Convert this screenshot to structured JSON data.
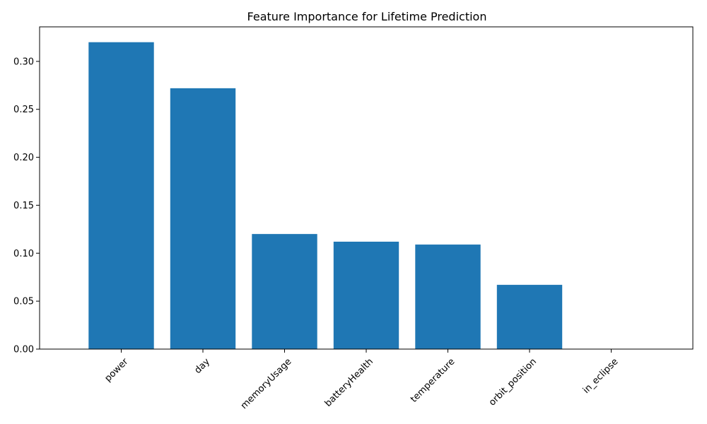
{
  "chart_data": {
    "type": "bar",
    "title": "Feature Importance for Lifetime Prediction",
    "xlabel": "",
    "ylabel": "",
    "categories": [
      "power",
      "day",
      "memoryUsage",
      "batteryHealth",
      "temperature",
      "orbit_position",
      "in_eclipse"
    ],
    "values": [
      0.32,
      0.272,
      0.12,
      0.112,
      0.109,
      0.067,
      0.0
    ],
    "ylim": [
      0,
      0.336
    ],
    "yticks": [
      0.0,
      0.05,
      0.1,
      0.15,
      0.2,
      0.25,
      0.3
    ],
    "ytick_labels": [
      "0.00",
      "0.05",
      "0.10",
      "0.15",
      "0.20",
      "0.25",
      "0.30"
    ],
    "xtick_rotation_deg": 45,
    "grid": false,
    "bar_color": "#1f77b4"
  }
}
